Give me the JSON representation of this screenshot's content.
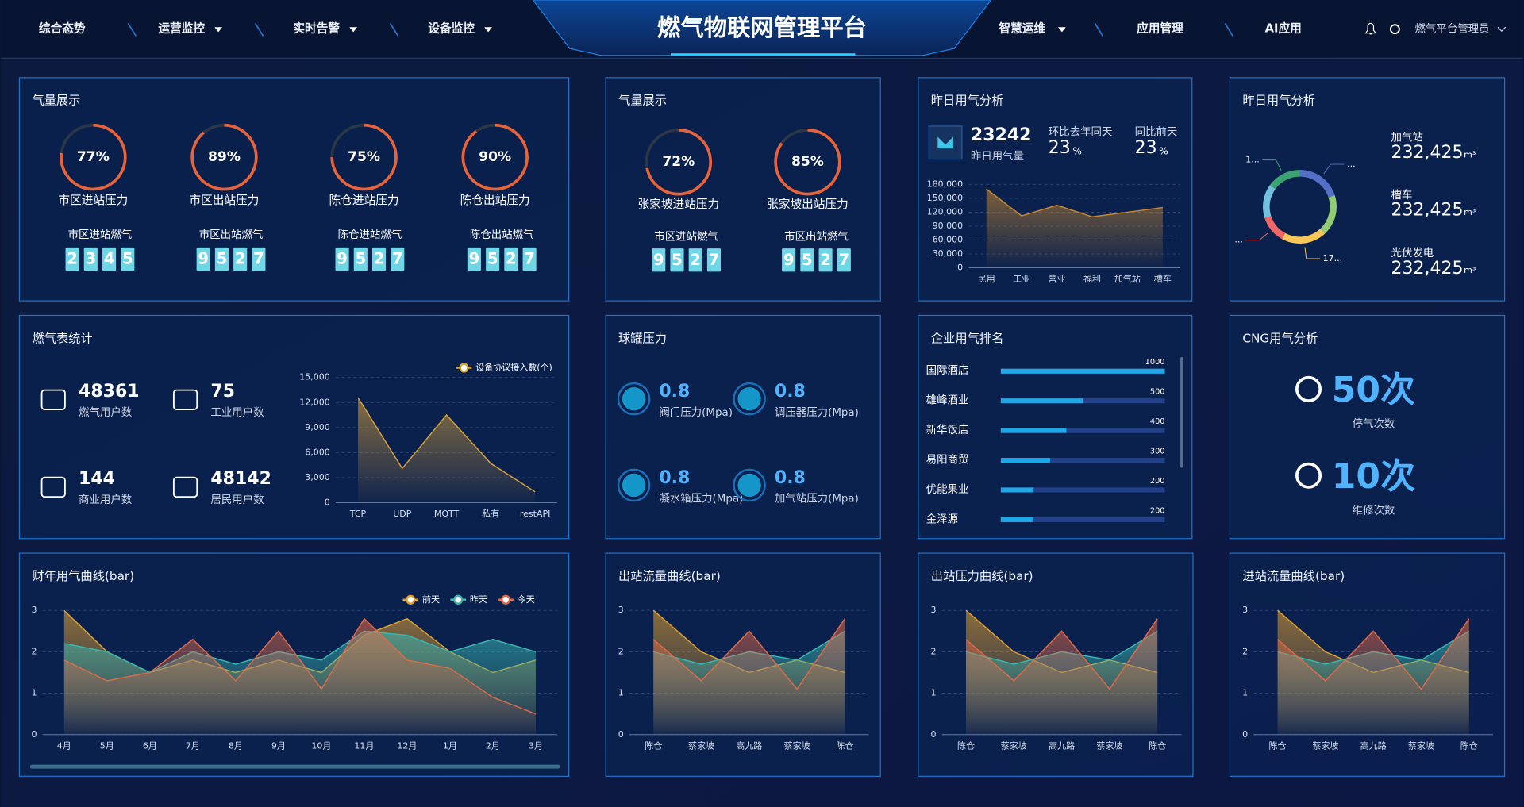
{
  "header": {
    "nav_left": [
      "综合态势",
      "运营监控",
      "实时告警",
      "设备监控"
    ],
    "title": "燃气物联网管理平台",
    "nav_right": [
      "智慧运维",
      "应用管理",
      "AI应用"
    ],
    "user": "燃气平台管理员"
  },
  "gas_display_1": {
    "title": "气量展示",
    "gauges": [
      {
        "label": "市区进站压力",
        "value": 77,
        "value_label": "77%"
      },
      {
        "label": "市区出站压力",
        "value": 89,
        "value_label": "89%"
      },
      {
        "label": "陈仓进站压力",
        "value": 75,
        "value_label": "75%"
      },
      {
        "label": "陈仓出站压力",
        "value": 90,
        "value_label": "90%"
      }
    ],
    "counters": [
      {
        "label": "市区进站燃气",
        "digits": [
          "2",
          "3",
          "4",
          "5"
        ]
      },
      {
        "label": "市区出站燃气",
        "digits": [
          "9",
          "5",
          "2",
          "7"
        ]
      },
      {
        "label": "陈仓进站燃气",
        "digits": [
          "9",
          "5",
          "2",
          "7"
        ]
      },
      {
        "label": "陈仓出站燃气",
        "digits": [
          "9",
          "5",
          "2",
          "7"
        ]
      }
    ]
  },
  "gas_display_2": {
    "title": "气量展示",
    "gauges": [
      {
        "label": "张家坡进站压力",
        "value": 72,
        "value_label": "72%"
      },
      {
        "label": "张家坡出站压力",
        "value": 85,
        "value_label": "85%"
      }
    ],
    "counters": [
      {
        "label": "市区进站燃气",
        "digits": [
          "9",
          "5",
          "2",
          "7"
        ]
      },
      {
        "label": "市区出站燃气",
        "digits": [
          "9",
          "5",
          "2",
          "7"
        ]
      }
    ]
  },
  "yesterday_analysis": {
    "title": "昨日用气分析",
    "total": "23242",
    "total_label": "昨日用气量",
    "yoy_label": "环比去年同天",
    "yoy": "23",
    "dod_label": "同比前天",
    "dod": "23",
    "unit": "%",
    "chart": {
      "type": "area",
      "categories": [
        "民用",
        "工业",
        "营业",
        "福利",
        "加气站",
        "槽车"
      ],
      "values": [
        170000,
        112000,
        135000,
        110000,
        120000,
        130000
      ],
      "color": "#c98a2e",
      "ylim": [
        0,
        180000
      ],
      "yticks": [
        0,
        {
          "value": 30000,
          "label": "30,000"
        },
        {
          "value": 60000,
          "label": "60,000"
        },
        {
          "value": 90000,
          "label": "90,000"
        },
        {
          "value": 120000,
          "label": "120,000"
        },
        {
          "value": 150000,
          "label": "150,000"
        },
        {
          "value": 180000,
          "label": "180,000"
        }
      ],
      "grid": true
    }
  },
  "yesterday_mix": {
    "title": "昨日用气分析",
    "chart": {
      "type": "donut",
      "values": [
        20,
        18,
        20,
        12,
        15,
        15
      ],
      "colors": [
        "#5470c6",
        "#91cc75",
        "#fac858",
        "#ee6666",
        "#73c0de",
        "#3ba272"
      ],
      "labels": [
        "...",
        null,
        "17...",
        "...",
        null,
        "1..."
      ]
    },
    "stats": [
      {
        "name": "加气站",
        "value": "232,425",
        "unit": "m³"
      },
      {
        "name": "槽车",
        "value": "232,425",
        "unit": "m³"
      },
      {
        "name": "光伏发电",
        "value": "232,425",
        "unit": "m³"
      }
    ]
  },
  "meter_stats": {
    "title": "燃气表统计",
    "stats": [
      {
        "value": "48361",
        "label": "燃气用户数"
      },
      {
        "value": "75",
        "label": "工业用户数"
      },
      {
        "value": "144",
        "label": "商业用户数"
      },
      {
        "value": "48142",
        "label": "居民用户数"
      }
    ],
    "chart": {
      "type": "line",
      "categories": [
        "TCP",
        "UDP",
        "MQTT",
        "私有",
        "restAPI"
      ],
      "series": [
        {
          "name": "设备协议接入数(个)",
          "color": "#d9a23a",
          "values": [
            12600,
            4100,
            10500,
            4700,
            1300
          ]
        }
      ],
      "ylim": [
        0,
        15000
      ],
      "yticks": [
        0,
        {
          "value": 3000,
          "label": "3,000"
        },
        {
          "value": 6000,
          "label": "6,000"
        },
        {
          "value": 9000,
          "label": "9,000"
        },
        {
          "value": 12000,
          "label": "12,000"
        },
        {
          "value": 15000,
          "label": "15,000"
        }
      ],
      "grid": true,
      "legend": "top-right"
    }
  },
  "tank_pressure": {
    "title": "球罐压力",
    "items": [
      {
        "value": "0.8",
        "label": "阀门压力(Mpa)"
      },
      {
        "value": "0.8",
        "label": "调压器压力(Mpa)"
      },
      {
        "value": "0.8",
        "label": "凝水箱压力(Mpa)"
      },
      {
        "value": "0.8",
        "label": "加气站压力(Mpa)"
      }
    ]
  },
  "enterprise_rank": {
    "title": "企业用气排名",
    "chart": {
      "type": "hbar",
      "categories": [
        "国际酒店",
        "雄峰酒业",
        "新华饭店",
        "易阳商贸",
        "优能果业",
        "金泽源"
      ],
      "values": [
        1000,
        500,
        400,
        300,
        200,
        200
      ],
      "xlim": [
        0,
        1000
      ],
      "color": "#1fa8e8"
    }
  },
  "cng": {
    "title": "CNG用气分析",
    "items": [
      {
        "value": "50次",
        "label": "停气次数"
      },
      {
        "value": "10次",
        "label": "维修次数"
      }
    ]
  },
  "curves": [
    {
      "title": "财年用气曲线(bar)",
      "chart": {
        "type": "line",
        "categories": [
          "4月",
          "5月",
          "6月",
          "7月",
          "8月",
          "9月",
          "10月",
          "11月",
          "12月",
          "1月",
          "2月",
          "3月"
        ],
        "series": [
          {
            "name": "前天",
            "color": "#e0a030",
            "values": [
              3,
              2,
              1.5,
              1.8,
              1.5,
              1.8,
              1.5,
              2.4,
              2.8,
              2,
              1.5,
              1.8
            ]
          },
          {
            "name": "昨天",
            "color": "#3ab7b0",
            "values": [
              2.2,
              2,
              1.5,
              2,
              1.7,
              2,
              1.8,
              2.5,
              2.4,
              2,
              2.3,
              2
            ]
          },
          {
            "name": "今天",
            "color": "#de6a48",
            "values": [
              1.8,
              1.3,
              1.5,
              2.3,
              1.3,
              2.5,
              1.1,
              2.8,
              1.8,
              1.6,
              0.9,
              0.5
            ]
          }
        ],
        "ylim": [
          0,
          3
        ],
        "yticks": [
          0,
          1,
          2,
          3
        ],
        "grid": true,
        "legend": "top-right"
      }
    },
    {
      "title": "出站流量曲线(bar)",
      "chart": {
        "type": "line",
        "categories": [
          "陈仓",
          "蔡家坡",
          "高九路",
          "蔡家坡",
          "陈仓"
        ],
        "series": [
          {
            "color": "#e0a030",
            "values": [
              3,
              2,
              1.5,
              1.8,
              1.5
            ]
          },
          {
            "color": "#3ab7b0",
            "values": [
              2,
              1.7,
              2,
              1.8,
              2.5
            ]
          },
          {
            "color": "#de6a48",
            "values": [
              2.3,
              1.3,
              2.5,
              1.1,
              2.8
            ]
          }
        ],
        "ylim": [
          0,
          3
        ],
        "yticks": [
          0,
          1,
          2,
          3
        ],
        "grid": true
      }
    },
    {
      "title": "出站压力曲线(bar)",
      "chart": {
        "type": "line",
        "categories": [
          "陈仓",
          "蔡家坡",
          "高九路",
          "蔡家坡",
          "陈仓"
        ],
        "series": [
          {
            "color": "#e0a030",
            "values": [
              3,
              2,
              1.5,
              1.8,
              1.5
            ]
          },
          {
            "color": "#3ab7b0",
            "values": [
              2,
              1.7,
              2,
              1.8,
              2.5
            ]
          },
          {
            "color": "#de6a48",
            "values": [
              2.3,
              1.3,
              2.5,
              1.1,
              2.8
            ]
          }
        ],
        "ylim": [
          0,
          3
        ],
        "yticks": [
          0,
          1,
          2,
          3
        ],
        "grid": true
      }
    },
    {
      "title": "进站流量曲线(bar)",
      "chart": {
        "type": "line",
        "categories": [
          "陈仓",
          "蔡家坡",
          "高九路",
          "蔡家坡",
          "陈仓"
        ],
        "series": [
          {
            "color": "#e0a030",
            "values": [
              3,
              2,
              1.5,
              1.8,
              1.5
            ]
          },
          {
            "color": "#3ab7b0",
            "values": [
              2,
              1.7,
              2,
              1.8,
              2.5
            ]
          },
          {
            "color": "#de6a48",
            "values": [
              2.3,
              1.3,
              2.5,
              1.1,
              2.8
            ]
          }
        ],
        "ylim": [
          0,
          3
        ],
        "yticks": [
          0,
          1,
          2,
          3
        ],
        "grid": true
      }
    }
  ]
}
